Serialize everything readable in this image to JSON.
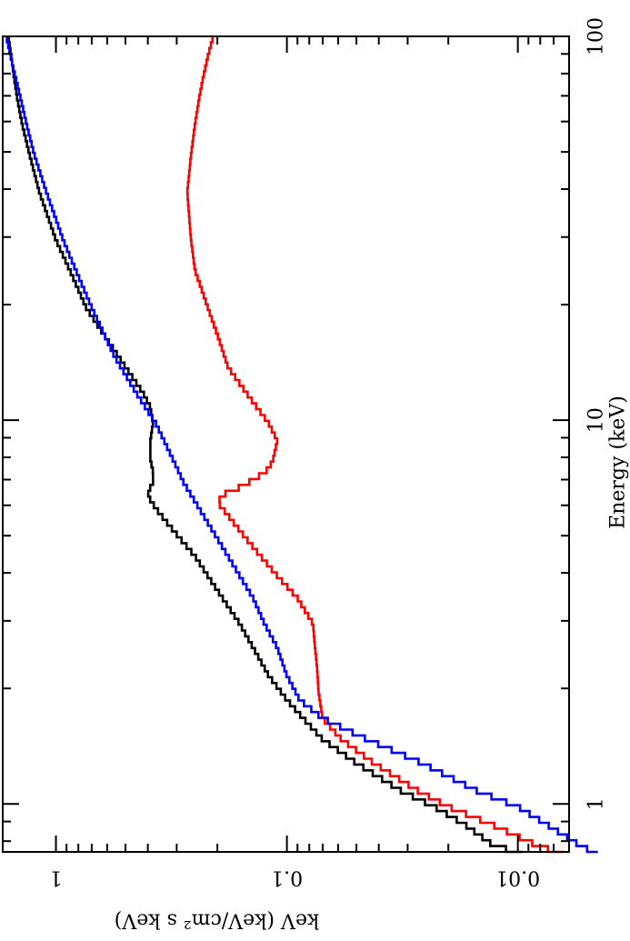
{
  "chart_data": {
    "type": "line",
    "orientation": "rotated 90 degrees clockwise (landscape plot shown in portrait)",
    "xlabel": "Energy (keV)",
    "ylabel": "keV (keV/cm² s keV)",
    "xscale": "log",
    "yscale": "log",
    "xlim": [
      0.75,
      100
    ],
    "ylim": [
      0.006,
      1.7
    ],
    "x_ticks": [
      1,
      10,
      100
    ],
    "x_tick_labels": [
      "1",
      "10",
      "100"
    ],
    "y_ticks": [
      0.01,
      0.1,
      1
    ],
    "y_tick_labels": [
      "0.01",
      "0.1",
      "1"
    ],
    "grid": false,
    "legend": "none",
    "series": [
      {
        "color": "#000000",
        "x": [
          0.75,
          0.8,
          0.9,
          1.0,
          1.1,
          1.3,
          1.5,
          1.7,
          1.9,
          2.2,
          2.6,
          3.0,
          3.5,
          4.0,
          4.5,
          5.0,
          5.5,
          6.0,
          6.3,
          6.6,
          7.0,
          7.5,
          8.0,
          9.0,
          10.0,
          11.0,
          12.0,
          14.0,
          17.0,
          20.0,
          25.0,
          30.0,
          40.0,
          50.0,
          60.0,
          70.0,
          80.0,
          90.0,
          100.0
        ],
        "y": [
          0.0095,
          0.013,
          0.017,
          0.023,
          0.032,
          0.05,
          0.07,
          0.085,
          0.1,
          0.12,
          0.14,
          0.16,
          0.19,
          0.22,
          0.25,
          0.29,
          0.33,
          0.37,
          0.39,
          0.4,
          0.38,
          0.38,
          0.39,
          0.39,
          0.38,
          0.39,
          0.42,
          0.5,
          0.62,
          0.74,
          0.87,
          1.0,
          1.18,
          1.3,
          1.4,
          1.47,
          1.52,
          1.56,
          1.6
        ]
      },
      {
        "color": "#ff0000",
        "x": [
          0.75,
          0.8,
          0.9,
          1.0,
          1.1,
          1.3,
          1.5,
          1.7,
          2.0,
          2.3,
          2.7,
          3.0,
          3.5,
          4.0,
          4.5,
          5.0,
          5.5,
          6.0,
          6.2,
          6.5,
          6.8,
          7.2,
          7.6,
          8.0,
          9.0,
          10.0,
          11.0,
          12.0,
          14.0,
          17.0,
          20.0,
          25.0,
          30.0,
          40.0,
          50.0,
          60.0,
          70.0,
          80.0,
          90.0,
          100.0
        ],
        "y": [
          0.0063,
          0.0085,
          0.013,
          0.02,
          0.027,
          0.042,
          0.058,
          0.07,
          0.073,
          0.074,
          0.076,
          0.077,
          0.09,
          0.11,
          0.13,
          0.15,
          0.17,
          0.19,
          0.2,
          0.19,
          0.16,
          0.135,
          0.12,
          0.115,
          0.11,
          0.12,
          0.135,
          0.15,
          0.18,
          0.2,
          0.22,
          0.25,
          0.26,
          0.27,
          0.26,
          0.25,
          0.24,
          0.23,
          0.22,
          0.21
        ]
      },
      {
        "color": "#0000ff",
        "x": [
          0.75,
          0.8,
          0.9,
          1.0,
          1.1,
          1.3,
          1.5,
          1.7,
          1.9,
          2.2,
          2.6,
          3.0,
          3.5,
          4.0,
          5.0,
          6.0,
          7.0,
          8.0,
          10.0,
          12.0,
          15.0,
          20.0,
          25.0,
          30.0,
          40.0,
          50.0,
          60.0,
          70.0,
          80.0,
          90.0,
          100.0
        ],
        "y": [
          0.0045,
          0.0055,
          0.0075,
          0.01,
          0.015,
          0.026,
          0.045,
          0.07,
          0.088,
          0.1,
          0.11,
          0.125,
          0.14,
          0.16,
          0.2,
          0.24,
          0.28,
          0.31,
          0.37,
          0.45,
          0.56,
          0.7,
          0.82,
          0.93,
          1.1,
          1.24,
          1.34,
          1.42,
          1.5,
          1.57,
          1.63
        ]
      }
    ]
  }
}
